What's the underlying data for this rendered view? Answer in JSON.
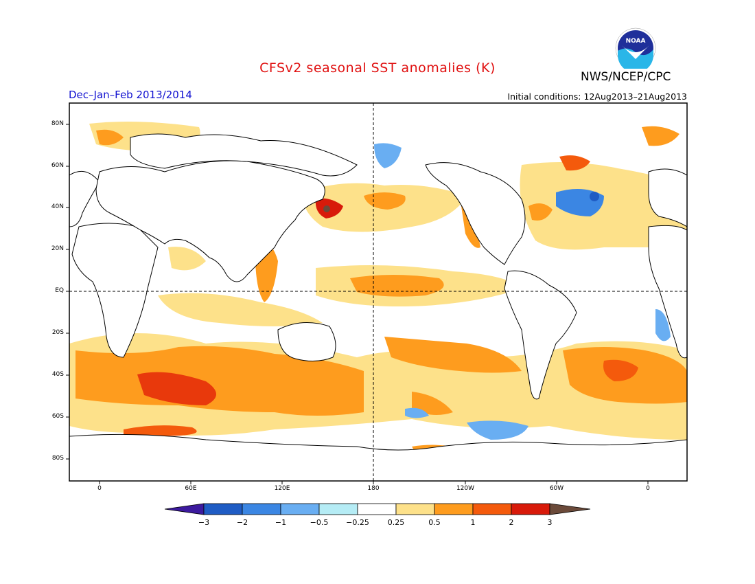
{
  "header": {
    "title": "CFSv2 seasonal SST anomalies (K)",
    "agency": "NWS/NCEP/CPC",
    "season": "Dec–Jan–Feb 2013/2014",
    "initial_conditions": "Initial conditions: 12Aug2013–21Aug2013",
    "logo_text": "NOAA"
  },
  "axes": {
    "lat_labels": [
      "80N",
      "60N",
      "40N",
      "20N",
      "EQ",
      "20S",
      "40S",
      "60S",
      "80S"
    ],
    "lon_labels": [
      "0",
      "60E",
      "120E",
      "180",
      "120W",
      "60W",
      "0"
    ]
  },
  "colorbar": {
    "labels": [
      "−3",
      "−2",
      "−1",
      "−0.5",
      "−0.25",
      "0.25",
      "0.5",
      "1",
      "2",
      "3"
    ],
    "colors": [
      "#3c1a9e",
      "#1f5cc4",
      "#3b86e3",
      "#69aef2",
      "#b5ecf5",
      "#ffffff",
      "#fde18a",
      "#fe9c1e",
      "#f45a0c",
      "#d81a0a",
      "#a00808",
      "#6b4a3a"
    ]
  }
}
